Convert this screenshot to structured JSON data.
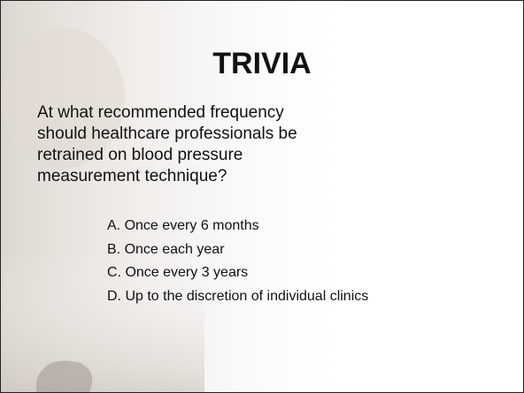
{
  "slide": {
    "title": "TRIVIA",
    "question": "At what recommended frequency should healthcare professionals be retrained on blood pressure measurement technique?",
    "options": [
      "A. Once every 6 months",
      "B. Once each year",
      "C. Once every 3 years",
      "D. Up to the discretion of individual clinics"
    ]
  }
}
